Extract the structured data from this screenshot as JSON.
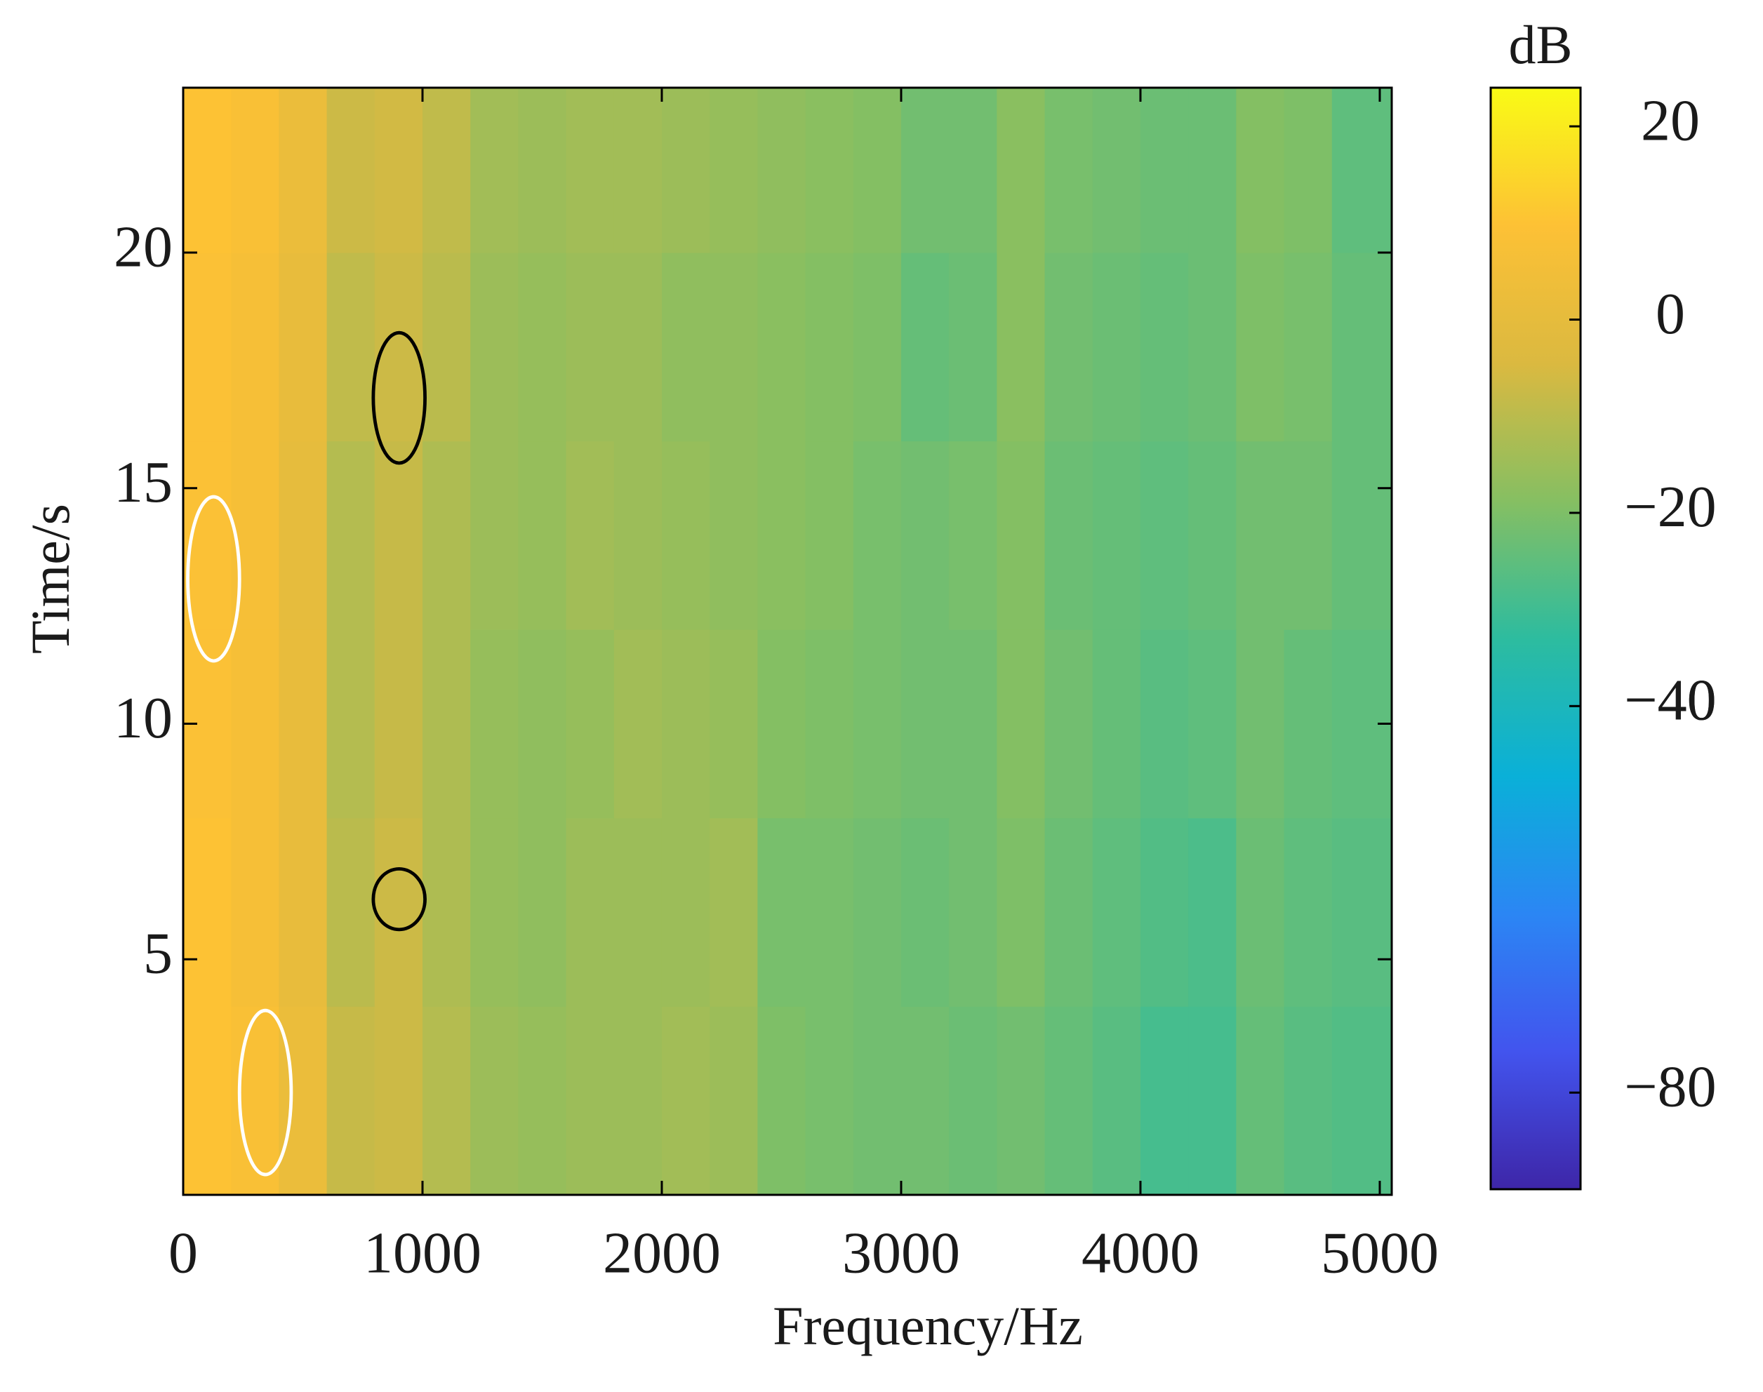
{
  "chart_data": {
    "type": "heatmap",
    "x_label": "Frequency/Hz",
    "y_label": "Time/s",
    "colorbar_label": "dB",
    "xlim": [
      0,
      5050
    ],
    "ylim": [
      0,
      23.5
    ],
    "xticks": [
      0,
      1000,
      2000,
      3000,
      4000,
      5000
    ],
    "yticks": [
      5,
      10,
      15,
      20
    ],
    "clim": [
      -90,
      24
    ],
    "cticks": [
      20,
      0,
      {
        "value": -20,
        "label": "−20"
      },
      {
        "value": -40,
        "label": "−40"
      },
      {
        "value": -40,
        "label": "−40"
      },
      {
        "value": -80,
        "label": "−80"
      }
    ],
    "colormap": [
      "#3e26a8",
      "#4254ee",
      "#2b86f4",
      "#0ab0d8",
      "#2dbc9f",
      "#86bf62",
      "#dbb940",
      "#fdc135",
      "#f9fb15"
    ],
    "x_edges": [
      0,
      200,
      400,
      600,
      800,
      1000,
      1200,
      1400,
      1600,
      1800,
      2000,
      2200,
      2400,
      2600,
      2800,
      3000,
      3200,
      3400,
      3600,
      3800,
      4000,
      4200,
      4400,
      4600,
      4800,
      5050
    ],
    "y_edges": [
      0,
      4,
      8,
      12,
      16,
      20,
      23.5
    ],
    "z": [
      [
        10,
        8,
        2,
        -8,
        -7,
        -11,
        -15,
        -16,
        -15,
        -15,
        -14,
        -15,
        -20,
        -21,
        -22,
        -22,
        -23,
        -22,
        -24,
        -26,
        -29,
        -29,
        -24,
        -26,
        -27
      ],
      [
        10,
        7,
        1,
        -10,
        -7,
        -12,
        -16,
        -17,
        -15,
        -15,
        -15,
        -14,
        -21,
        -21,
        -22,
        -23,
        -22,
        -20,
        -23,
        -25,
        -27,
        -28,
        -23,
        -25,
        -26
      ],
      [
        9,
        7,
        1,
        -11,
        -8,
        -12,
        -16,
        -17,
        -16,
        -14,
        -15,
        -16,
        -19,
        -20,
        -21,
        -22,
        -22,
        -19,
        -22,
        -24,
        -26,
        -25,
        -22,
        -24,
        -25
      ],
      [
        9,
        7,
        0,
        -11,
        -8,
        -12,
        -15,
        -16,
        -14,
        -15,
        -16,
        -17,
        -18,
        -19,
        -21,
        -22,
        -21,
        -19,
        -23,
        -24,
        -25,
        -24,
        -22,
        -22,
        -24
      ],
      [
        9,
        7,
        1,
        -9,
        -7,
        -10,
        -15,
        -16,
        -15,
        -15,
        -17,
        -17,
        -18,
        -19,
        -20,
        -24,
        -23,
        -18,
        -22,
        -23,
        -24,
        -23,
        -20,
        -21,
        -24
      ],
      [
        10,
        8,
        2,
        -7,
        -6,
        -9,
        -14,
        -15,
        -14,
        -14,
        -15,
        -16,
        -17,
        -18,
        -19,
        -22,
        -22,
        -18,
        -21,
        -22,
        -23,
        -23,
        -19,
        -20,
        -25
      ]
    ]
  }
}
